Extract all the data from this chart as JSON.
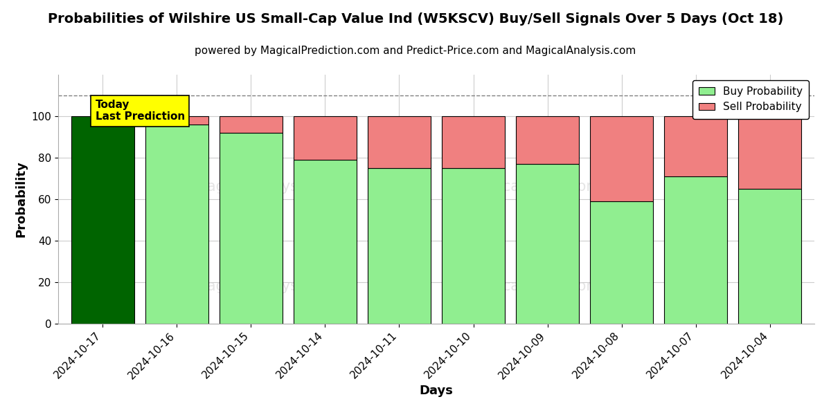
{
  "title": "Probabilities of Wilshire US Small-Cap Value Ind (W5KSCV) Buy/Sell Signals Over 5 Days (Oct 18)",
  "subtitle": "powered by MagicalPrediction.com and Predict-Price.com and MagicalAnalysis.com",
  "xlabel": "Days",
  "ylabel": "Probability",
  "dates": [
    "2024-10-17",
    "2024-10-16",
    "2024-10-15",
    "2024-10-14",
    "2024-10-11",
    "2024-10-10",
    "2024-10-09",
    "2024-10-08",
    "2024-10-07",
    "2024-10-04"
  ],
  "buy_values": [
    100,
    96,
    92,
    79,
    75,
    75,
    77,
    59,
    71,
    65
  ],
  "sell_values": [
    0,
    4,
    8,
    21,
    25,
    25,
    23,
    41,
    29,
    35
  ],
  "today_bar_color": "#006400",
  "buy_color": "#90EE90",
  "sell_color": "#F08080",
  "today_label_bg": "#FFFF00",
  "dashed_line_y": 110,
  "ylim": [
    0,
    120
  ],
  "yticks": [
    0,
    20,
    40,
    60,
    80,
    100
  ],
  "legend_buy": "Buy Probability",
  "legend_sell": "Sell Probability",
  "background_color": "#ffffff",
  "grid_color": "#cccccc",
  "figsize": [
    12,
    6
  ],
  "dpi": 100,
  "bar_width": 0.85
}
